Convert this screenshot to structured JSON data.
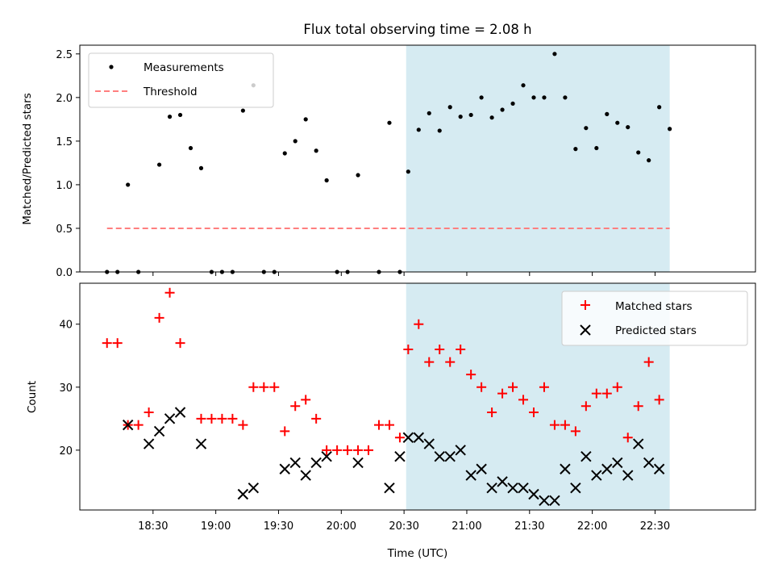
{
  "chart_data": {
    "type": "scatter",
    "title": "Flux total observing time = 2.08 h",
    "xlabel": "Time (UTC)",
    "x_unit": "minutes since 00:00 UTC",
    "xlim": [
      1075,
      1398
    ],
    "x_ticks": [
      {
        "value": 1110,
        "label": "18:30"
      },
      {
        "value": 1140,
        "label": "19:00"
      },
      {
        "value": 1170,
        "label": "19:30"
      },
      {
        "value": 1200,
        "label": "20:00"
      },
      {
        "value": 1230,
        "label": "20:30"
      },
      {
        "value": 1260,
        "label": "21:00"
      },
      {
        "value": 1290,
        "label": "21:30"
      },
      {
        "value": 1320,
        "label": "22:00"
      },
      {
        "value": 1350,
        "label": "22:30"
      }
    ],
    "highlight_span": {
      "x0": 1231,
      "x1": 1357,
      "color": "#add8e6"
    },
    "times": [
      1088,
      1093,
      1098,
      1103,
      1108,
      1113,
      1118,
      1123,
      1128,
      1133,
      1138,
      1143,
      1148,
      1153,
      1158,
      1163,
      1168,
      1173,
      1178,
      1183,
      1188,
      1193,
      1198,
      1203,
      1208,
      1213,
      1218,
      1223,
      1228,
      1232,
      1237,
      1242,
      1247,
      1252,
      1257,
      1262,
      1267,
      1272,
      1277,
      1282,
      1287,
      1292,
      1297,
      1302,
      1307,
      1312,
      1317,
      1322,
      1327,
      1332,
      1337,
      1342,
      1347,
      1352,
      1357
    ],
    "top": {
      "ylabel": "Matched/Predicted stars",
      "ylim": [
        0,
        2.6
      ],
      "y_ticks": [
        {
          "value": 0,
          "label": "0.0"
        },
        {
          "value": 0.5,
          "label": "0.5"
        },
        {
          "value": 1,
          "label": "1.0"
        },
        {
          "value": 1.5,
          "label": "1.5"
        },
        {
          "value": 2,
          "label": "2.0"
        },
        {
          "value": 2.5,
          "label": "2.5"
        }
      ],
      "threshold": {
        "name": "Threshold",
        "value": 0.5,
        "x0": 1088,
        "x1": 1357,
        "color": "#ff7f7f"
      },
      "measurements": {
        "name": "Measurements",
        "color": "#000000",
        "values": [
          0,
          0,
          1.0,
          0,
          1.23,
          1.78,
          1.8,
          1.42,
          1.19,
          0,
          0,
          0,
          1.85,
          2.14,
          0,
          0,
          1.36,
          1.5,
          1.75,
          1.39,
          1.05,
          0,
          0,
          1.11,
          0,
          1.71,
          0,
          1.15,
          1.63,
          1.82,
          1.62,
          1.89,
          1.78,
          1.8,
          2.0,
          1.77,
          1.86,
          1.93,
          2.14,
          2.0,
          2.0,
          2.5,
          2.0,
          1.41,
          1.65,
          1.42,
          1.81,
          1.71,
          1.66,
          1.37,
          1.28,
          1.89,
          1.64
        ]
      },
      "measurement_times": [
        1088,
        1093,
        1098,
        1103,
        1113,
        1118,
        1123,
        1128,
        1133,
        1138,
        1143,
        1148,
        1153,
        1158,
        1163,
        1168,
        1173,
        1178,
        1183,
        1188,
        1193,
        1198,
        1203,
        1208,
        1218,
        1223,
        1228,
        1232,
        1237,
        1242,
        1247,
        1252,
        1257,
        1262,
        1267,
        1272,
        1277,
        1282,
        1287,
        1292,
        1297,
        1302,
        1307,
        1312,
        1317,
        1322,
        1327,
        1332,
        1337,
        1342,
        1347,
        1352,
        1357
      ],
      "legend": {
        "location": "upper-left"
      }
    },
    "bottom": {
      "ylabel": "Count",
      "ylim": [
        10.5,
        46.5
      ],
      "y_ticks": [
        {
          "value": 20,
          "label": "20"
        },
        {
          "value": 30,
          "label": "30"
        },
        {
          "value": 40,
          "label": "40"
        }
      ],
      "series": [
        {
          "name": "Matched stars",
          "marker": "+",
          "color": "#ff0000",
          "values": [
            37,
            37,
            24,
            24,
            26,
            41,
            45,
            37,
            25,
            25,
            25,
            25,
            24,
            30,
            30,
            30,
            23,
            27,
            28,
            25,
            20,
            20,
            20,
            20,
            20,
            24,
            24,
            22,
            36,
            40,
            34,
            36,
            34,
            36,
            32,
            30,
            26,
            29,
            30,
            28,
            26,
            30,
            24,
            24,
            23,
            27,
            29,
            29,
            30,
            22,
            27,
            34,
            28
          ]
        },
        {
          "name": "Predicted stars",
          "marker": "x",
          "color": "#000000",
          "values": [
            24,
            21,
            23,
            25,
            26,
            21,
            13,
            14,
            17,
            18,
            16,
            18,
            19,
            18,
            14,
            19,
            22,
            22,
            21,
            19,
            19,
            20,
            16,
            17,
            14,
            15,
            14,
            14,
            13,
            12,
            12,
            17,
            14,
            19,
            16,
            17,
            18,
            16,
            21,
            18,
            17
          ]
        }
      ],
      "matched_times": [
        1088,
        1093,
        1098,
        1103,
        1108,
        1113,
        1118,
        1123,
        1133,
        1138,
        1143,
        1148,
        1153,
        1158,
        1163,
        1168,
        1173,
        1178,
        1183,
        1188,
        1193,
        1198,
        1203,
        1208,
        1213,
        1218,
        1223,
        1228,
        1232,
        1237,
        1242,
        1247,
        1252,
        1257,
        1262,
        1267,
        1272,
        1277,
        1282,
        1287,
        1292,
        1297,
        1302,
        1307,
        1312,
        1317,
        1322,
        1327,
        1332,
        1337,
        1342,
        1347,
        1352
      ],
      "predicted_times": [
        1098,
        1108,
        1113,
        1118,
        1123,
        1133,
        1153,
        1158,
        1173,
        1178,
        1183,
        1188,
        1193,
        1208,
        1223,
        1228,
        1232,
        1237,
        1242,
        1247,
        1252,
        1257,
        1262,
        1267,
        1272,
        1277,
        1282,
        1287,
        1292,
        1297,
        1302,
        1307,
        1312,
        1317,
        1322,
        1327,
        1332,
        1337,
        1342,
        1347,
        1352
      ],
      "legend": {
        "location": "upper-right"
      }
    }
  }
}
